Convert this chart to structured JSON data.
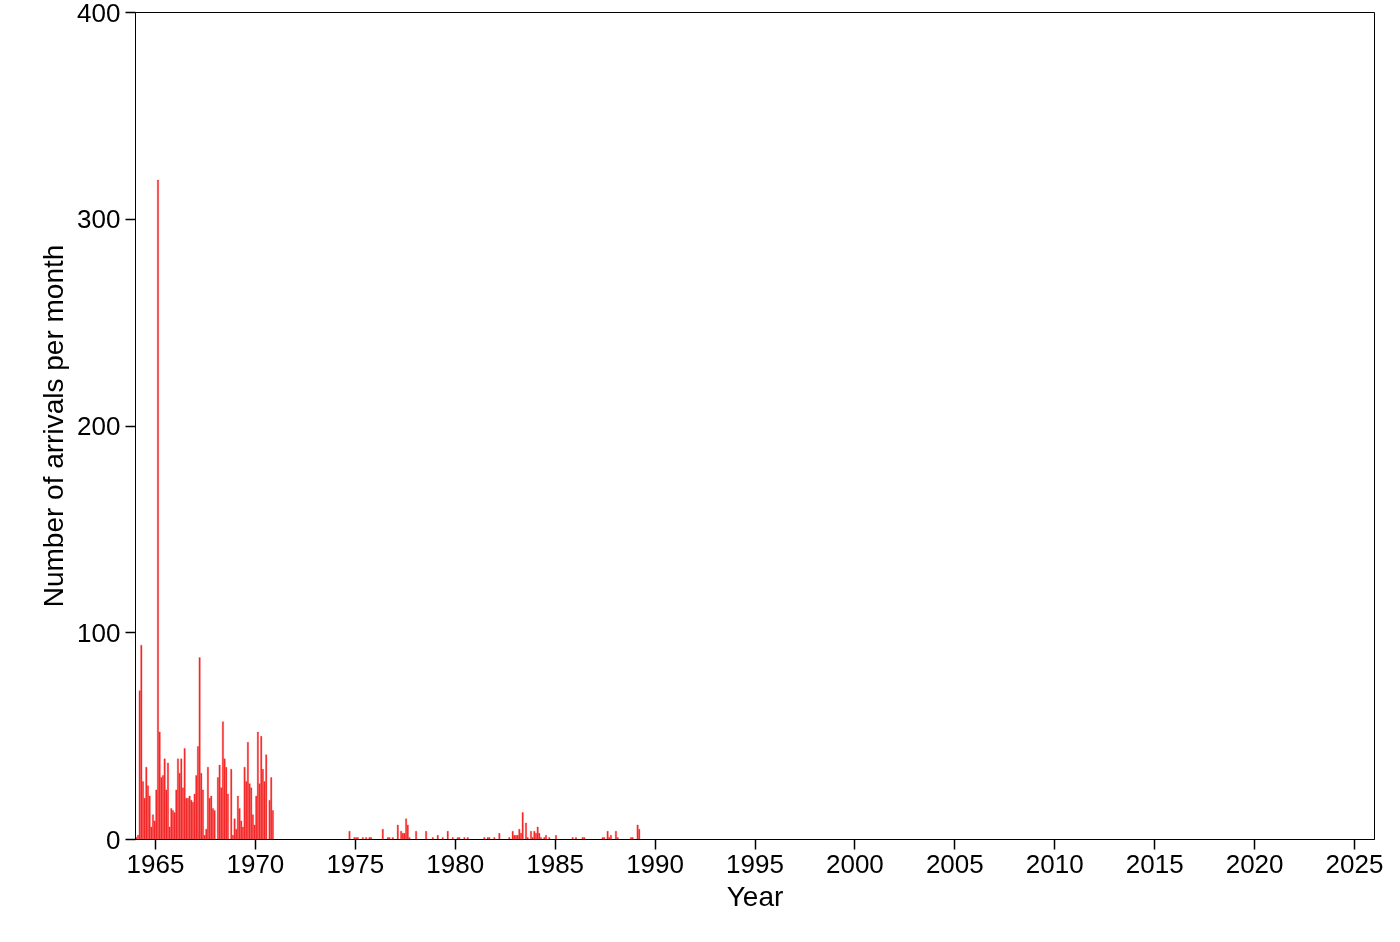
{
  "chart_data": {
    "type": "bar",
    "xlabel": "Year",
    "ylabel": "Number of arrivals per month",
    "x": [
      "1964-01",
      "1964-02",
      "1964-03",
      "1964-04",
      "1964-05",
      "1964-06",
      "1964-07",
      "1964-08",
      "1964-09",
      "1964-10",
      "1964-11",
      "1964-12",
      "1965-01",
      "1965-02",
      "1965-03",
      "1965-04",
      "1965-05",
      "1965-06",
      "1965-07",
      "1965-08",
      "1965-09",
      "1965-10",
      "1965-11",
      "1965-12",
      "1966-01",
      "1966-02",
      "1966-03",
      "1966-04",
      "1966-05",
      "1966-06",
      "1966-07",
      "1966-08",
      "1966-09",
      "1966-10",
      "1966-11",
      "1966-12",
      "1967-01",
      "1967-02",
      "1967-03",
      "1967-04",
      "1967-05",
      "1967-06",
      "1967-07",
      "1967-08",
      "1967-09",
      "1967-10",
      "1967-11",
      "1967-12",
      "1968-02",
      "1968-03",
      "1968-04",
      "1968-05",
      "1968-06",
      "1968-07",
      "1968-08",
      "1968-10",
      "1968-11",
      "1968-12",
      "1969-01",
      "1969-02",
      "1969-03",
      "1969-04",
      "1969-05",
      "1969-06",
      "1969-07",
      "1969-08",
      "1969-09",
      "1969-10",
      "1969-11",
      "1969-12",
      "1970-01",
      "1970-02",
      "1970-03",
      "1970-04",
      "1970-05",
      "1970-06",
      "1970-07",
      "1970-09",
      "1970-10",
      "1970-11",
      "1974-09",
      "1974-12",
      "1975-01",
      "1975-02",
      "1975-05",
      "1975-07",
      "1975-09",
      "1975-10",
      "1976-05",
      "1976-08",
      "1976-09",
      "1976-11",
      "1977-02",
      "1977-04",
      "1977-05",
      "1977-06",
      "1977-07",
      "1977-08",
      "1977-09",
      "1978-01",
      "1978-07",
      "1978-11",
      "1979-02",
      "1979-05",
      "1979-08",
      "1979-11",
      "1980-02",
      "1980-03",
      "1980-06",
      "1980-08",
      "1981-06",
      "1981-08",
      "1981-09",
      "1981-12",
      "1982-03",
      "1982-09",
      "1982-11",
      "1982-12",
      "1983-01",
      "1983-02",
      "1983-03",
      "1983-04",
      "1983-05",
      "1983-07",
      "1983-08",
      "1983-10",
      "1983-11",
      "1983-12",
      "1984-01",
      "1984-02",
      "1984-03",
      "1984-04",
      "1984-06",
      "1984-07",
      "1984-09",
      "1985-01",
      "1985-11",
      "1986-01",
      "1986-05",
      "1986-06",
      "1987-05",
      "1987-06",
      "1987-08",
      "1987-09",
      "1987-10",
      "1988-01",
      "1988-02",
      "1988-10",
      "1988-11",
      "1989-02",
      "1989-03"
    ],
    "values": [
      1,
      2,
      72,
      94,
      28,
      20,
      35,
      26,
      21,
      6,
      12,
      9,
      24,
      319,
      52,
      30,
      31,
      39,
      24,
      37,
      6,
      15,
      14,
      13,
      24,
      39,
      32,
      39,
      25,
      44,
      20,
      20,
      21,
      19,
      18,
      22,
      31,
      45,
      88,
      32,
      24,
      2,
      5,
      35,
      20,
      21,
      15,
      14,
      30,
      36,
      25,
      57,
      39,
      35,
      22,
      34,
      2,
      10,
      5,
      21,
      15,
      9,
      6,
      35,
      28,
      47,
      27,
      25,
      12,
      7,
      21,
      52,
      27,
      50,
      34,
      28,
      41,
      19,
      30,
      14,
      4,
      1,
      1,
      1,
      1,
      1,
      1,
      1,
      5,
      1,
      1,
      1,
      7,
      4,
      3,
      3,
      10,
      7,
      1,
      4,
      4,
      1,
      2,
      1,
      4,
      1,
      1,
      1,
      1,
      1,
      1,
      1,
      1,
      1,
      3,
      1,
      4,
      2,
      2,
      2,
      5,
      3,
      13,
      8,
      1,
      4,
      1,
      4,
      3,
      6,
      3,
      1,
      1,
      2,
      1,
      2,
      1,
      1,
      1,
      1,
      1,
      1,
      4,
      1,
      2,
      4,
      1,
      1,
      1,
      7,
      5
    ],
    "color": "#f42a2a",
    "xlim": [
      "1964-01",
      "2025-12"
    ],
    "xticks": [
      "1965",
      "1970",
      "1975",
      "1980",
      "1985",
      "1990",
      "1995",
      "2000",
      "2005",
      "2010",
      "2015",
      "2020",
      "2025"
    ],
    "ylim": [
      0,
      400
    ],
    "yticks": [
      0,
      100,
      200,
      300,
      400
    ],
    "grid": false
  }
}
